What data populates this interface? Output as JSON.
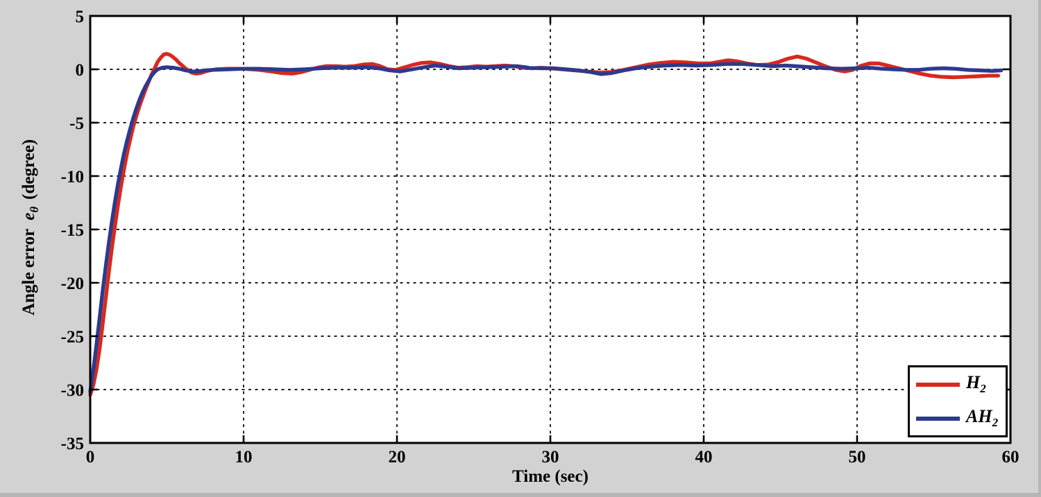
{
  "figure": {
    "background": "#d2d2d2",
    "plot_background": "#ffffff",
    "frame_color": "#000000"
  },
  "chart_data": {
    "type": "line",
    "title": "",
    "xlabel": "Time (sec)",
    "ylabel": {
      "prefix": "Angle error",
      "var": "e",
      "subscript": "θ",
      "suffix": "(degree)"
    },
    "xlim": [
      0,
      60
    ],
    "ylim": [
      -35,
      5
    ],
    "xticks": [
      0,
      10,
      20,
      30,
      40,
      50,
      60
    ],
    "yticks": [
      5,
      0,
      -5,
      -10,
      -15,
      -20,
      -25,
      -30,
      -35
    ],
    "grid": "dashed black, at interior ticks",
    "legend": {
      "position": "lower right",
      "entries": [
        {
          "label": "H",
          "subscript": "2",
          "color": "#d8291f"
        },
        {
          "label": "AH",
          "subscript": "2",
          "color": "#2d3a8c"
        }
      ]
    },
    "series": [
      {
        "name": "H2",
        "color": "#d8291f",
        "points": [
          [
            0,
            -30.5
          ],
          [
            0.2,
            -29.6
          ],
          [
            0.4,
            -28.2
          ],
          [
            0.6,
            -26.3
          ],
          [
            0.8,
            -24.0
          ],
          [
            1.0,
            -21.6
          ],
          [
            1.2,
            -19.2
          ],
          [
            1.4,
            -16.9
          ],
          [
            1.6,
            -14.8
          ],
          [
            1.8,
            -12.8
          ],
          [
            2.0,
            -11.0
          ],
          [
            2.2,
            -9.4
          ],
          [
            2.4,
            -7.9
          ],
          [
            2.6,
            -6.6
          ],
          [
            2.8,
            -5.4
          ],
          [
            3.0,
            -4.4
          ],
          [
            3.2,
            -3.5
          ],
          [
            3.4,
            -2.7
          ],
          [
            3.6,
            -1.9
          ],
          [
            3.8,
            -1.2
          ],
          [
            4.0,
            -0.5
          ],
          [
            4.2,
            0.1
          ],
          [
            4.4,
            0.7
          ],
          [
            4.6,
            1.1
          ],
          [
            4.8,
            1.4
          ],
          [
            5.0,
            1.45
          ],
          [
            5.2,
            1.35
          ],
          [
            5.4,
            1.15
          ],
          [
            5.6,
            0.9
          ],
          [
            5.8,
            0.6
          ],
          [
            6.0,
            0.35
          ],
          [
            6.2,
            0.1
          ],
          [
            6.4,
            -0.1
          ],
          [
            6.6,
            -0.3
          ],
          [
            6.9,
            -0.4
          ],
          [
            7.2,
            -0.35
          ],
          [
            7.5,
            -0.2
          ],
          [
            7.8,
            -0.1
          ],
          [
            8.2,
            0.0
          ],
          [
            9.0,
            0.05
          ],
          [
            10.0,
            0.05
          ],
          [
            11.0,
            -0.05
          ],
          [
            11.8,
            -0.2
          ],
          [
            12.5,
            -0.35
          ],
          [
            13.2,
            -0.4
          ],
          [
            13.8,
            -0.25
          ],
          [
            14.3,
            -0.05
          ],
          [
            14.8,
            0.15
          ],
          [
            15.4,
            0.3
          ],
          [
            16.0,
            0.3
          ],
          [
            16.6,
            0.25
          ],
          [
            17.2,
            0.3
          ],
          [
            17.8,
            0.45
          ],
          [
            18.4,
            0.5
          ],
          [
            18.9,
            0.3
          ],
          [
            19.4,
            0.0
          ],
          [
            19.9,
            -0.05
          ],
          [
            20.4,
            0.15
          ],
          [
            21.0,
            0.4
          ],
          [
            21.6,
            0.6
          ],
          [
            22.2,
            0.65
          ],
          [
            22.8,
            0.5
          ],
          [
            23.4,
            0.3
          ],
          [
            24.0,
            0.15
          ],
          [
            24.6,
            0.2
          ],
          [
            25.2,
            0.3
          ],
          [
            25.8,
            0.25
          ],
          [
            26.4,
            0.3
          ],
          [
            27.0,
            0.35
          ],
          [
            27.6,
            0.3
          ],
          [
            28.2,
            0.15
          ],
          [
            28.8,
            0.1
          ],
          [
            29.4,
            0.15
          ],
          [
            30.0,
            0.1
          ],
          [
            30.8,
            0.0
          ],
          [
            31.6,
            -0.1
          ],
          [
            32.4,
            -0.2
          ],
          [
            33.2,
            -0.3
          ],
          [
            34.0,
            -0.25
          ],
          [
            34.8,
            -0.05
          ],
          [
            35.6,
            0.2
          ],
          [
            36.4,
            0.45
          ],
          [
            37.2,
            0.6
          ],
          [
            38.0,
            0.7
          ],
          [
            38.8,
            0.65
          ],
          [
            39.6,
            0.55
          ],
          [
            40.4,
            0.55
          ],
          [
            41.0,
            0.7
          ],
          [
            41.6,
            0.85
          ],
          [
            42.2,
            0.75
          ],
          [
            42.8,
            0.55
          ],
          [
            43.5,
            0.4
          ],
          [
            44.2,
            0.45
          ],
          [
            44.9,
            0.7
          ],
          [
            45.5,
            1.0
          ],
          [
            46.1,
            1.2
          ],
          [
            46.7,
            1.0
          ],
          [
            47.3,
            0.65
          ],
          [
            48.0,
            0.25
          ],
          [
            48.6,
            -0.05
          ],
          [
            49.2,
            -0.2
          ],
          [
            49.7,
            -0.05
          ],
          [
            50.2,
            0.3
          ],
          [
            50.8,
            0.55
          ],
          [
            51.4,
            0.55
          ],
          [
            52.0,
            0.35
          ],
          [
            52.7,
            0.1
          ],
          [
            53.4,
            -0.15
          ],
          [
            54.1,
            -0.4
          ],
          [
            54.8,
            -0.6
          ],
          [
            55.5,
            -0.7
          ],
          [
            56.3,
            -0.75
          ],
          [
            57.1,
            -0.7
          ],
          [
            57.9,
            -0.65
          ],
          [
            58.6,
            -0.6
          ],
          [
            59.2,
            -0.6
          ]
        ]
      },
      {
        "name": "AH2",
        "color": "#2d3a8c",
        "points": [
          [
            0,
            -30.2
          ],
          [
            0.2,
            -28.2
          ],
          [
            0.4,
            -25.9
          ],
          [
            0.6,
            -23.4
          ],
          [
            0.8,
            -20.9
          ],
          [
            1.0,
            -18.6
          ],
          [
            1.2,
            -16.4
          ],
          [
            1.4,
            -14.4
          ],
          [
            1.6,
            -12.5
          ],
          [
            1.8,
            -10.8
          ],
          [
            2.0,
            -9.3
          ],
          [
            2.2,
            -7.9
          ],
          [
            2.4,
            -6.7
          ],
          [
            2.6,
            -5.6
          ],
          [
            2.8,
            -4.6
          ],
          [
            3.0,
            -3.7
          ],
          [
            3.2,
            -2.9
          ],
          [
            3.4,
            -2.2
          ],
          [
            3.6,
            -1.6
          ],
          [
            3.8,
            -1.1
          ],
          [
            4.0,
            -0.6
          ],
          [
            4.2,
            -0.25
          ],
          [
            4.4,
            0.0
          ],
          [
            4.7,
            0.15
          ],
          [
            5.0,
            0.2
          ],
          [
            5.4,
            0.15
          ],
          [
            5.8,
            0.05
          ],
          [
            6.2,
            -0.1
          ],
          [
            6.6,
            -0.2
          ],
          [
            7.0,
            -0.2
          ],
          [
            7.5,
            -0.1
          ],
          [
            8.0,
            -0.05
          ],
          [
            9.0,
            0.0
          ],
          [
            10.0,
            0.05
          ],
          [
            11.0,
            0.05
          ],
          [
            12.0,
            0.0
          ],
          [
            13.0,
            -0.05
          ],
          [
            14.0,
            0.0
          ],
          [
            15.0,
            0.1
          ],
          [
            16.0,
            0.15
          ],
          [
            17.0,
            0.15
          ],
          [
            18.0,
            0.2
          ],
          [
            18.8,
            0.1
          ],
          [
            19.5,
            -0.1
          ],
          [
            20.2,
            -0.2
          ],
          [
            21.0,
            0.0
          ],
          [
            21.8,
            0.2
          ],
          [
            22.5,
            0.35
          ],
          [
            23.2,
            0.25
          ],
          [
            24.0,
            0.1
          ],
          [
            25.0,
            0.15
          ],
          [
            26.0,
            0.2
          ],
          [
            27.0,
            0.25
          ],
          [
            27.8,
            0.3
          ],
          [
            28.6,
            0.15
          ],
          [
            29.4,
            0.1
          ],
          [
            30.2,
            0.1
          ],
          [
            31.0,
            0.0
          ],
          [
            31.8,
            -0.1
          ],
          [
            32.6,
            -0.25
          ],
          [
            33.3,
            -0.45
          ],
          [
            34.0,
            -0.35
          ],
          [
            34.8,
            -0.1
          ],
          [
            35.6,
            0.1
          ],
          [
            36.5,
            0.25
          ],
          [
            37.5,
            0.35
          ],
          [
            38.5,
            0.4
          ],
          [
            39.5,
            0.35
          ],
          [
            40.5,
            0.4
          ],
          [
            41.5,
            0.5
          ],
          [
            42.5,
            0.5
          ],
          [
            43.5,
            0.4
          ],
          [
            44.5,
            0.3
          ],
          [
            45.3,
            0.35
          ],
          [
            46.0,
            0.3
          ],
          [
            47.0,
            0.2
          ],
          [
            48.0,
            0.1
          ],
          [
            49.0,
            0.05
          ],
          [
            50.0,
            0.1
          ],
          [
            50.8,
            0.15
          ],
          [
            51.6,
            0.05
          ],
          [
            52.4,
            0.0
          ],
          [
            53.2,
            -0.05
          ],
          [
            54.0,
            -0.05
          ],
          [
            54.8,
            0.05
          ],
          [
            55.6,
            0.1
          ],
          [
            56.4,
            0.05
          ],
          [
            57.2,
            -0.05
          ],
          [
            58.0,
            -0.1
          ],
          [
            58.8,
            -0.15
          ],
          [
            59.4,
            -0.1
          ]
        ]
      }
    ]
  }
}
